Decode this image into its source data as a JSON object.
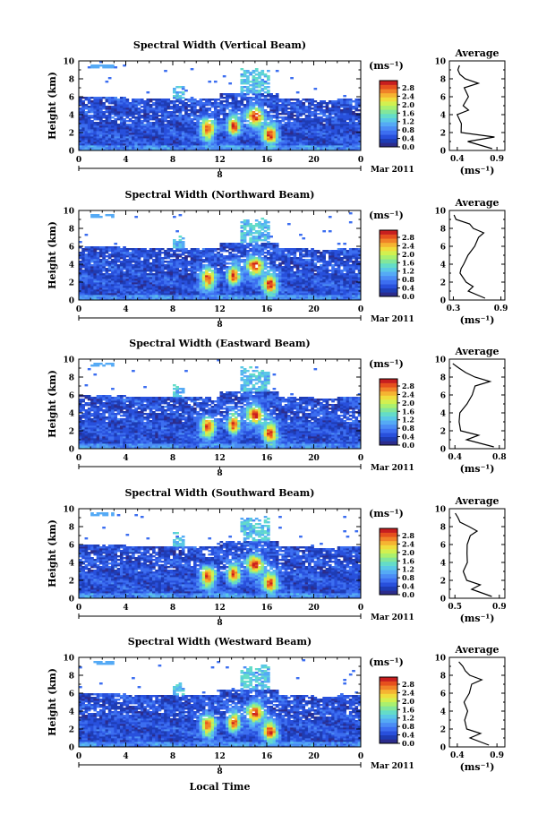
{
  "figure": {
    "xlabel": "Local Time",
    "date_label": "Mar 2011",
    "day_label": "8",
    "height_label": "Height (km)",
    "colorbar_unit": "(ms⁻¹)",
    "average_title": "Average",
    "average_xlabel": "(ms⁻¹)"
  },
  "colorbar": {
    "ticks": [
      "0.0",
      "0.4",
      "0.8",
      "1.2",
      "1.6",
      "2.0",
      "2.4",
      "2.8"
    ],
    "colors": [
      "#2c2c8c",
      "#1e3cb4",
      "#2850dc",
      "#3c6ef0",
      "#4b8cf5",
      "#55aaf5",
      "#5ac8e6",
      "#64dcc8",
      "#82e69b",
      "#aaf06e",
      "#d2f050",
      "#f0dc3c",
      "#f5b432",
      "#f08228",
      "#e6501e",
      "#c81e1e"
    ]
  },
  "chart_data": [
    {
      "type": "heatmap",
      "title": "Spectral Width (Vertical Beam)",
      "x_ticks": [
        "0",
        "4",
        "8",
        "12",
        "16",
        "20",
        "0"
      ],
      "y_ticks": [
        "0",
        "2",
        "4",
        "6",
        "8",
        "10"
      ],
      "xlim": [
        0,
        24
      ],
      "ylim": [
        0,
        10
      ],
      "profile": {
        "x_ticks": [
          "0.4",
          "0.9"
        ],
        "xlim": [
          0.3,
          1.0
        ],
        "height": [
          0.2,
          1.0,
          1.5,
          2.0,
          3.0,
          4.0,
          4.5,
          5.0,
          6.0,
          7.0,
          7.5,
          8.0,
          8.5,
          9.0,
          9.5
        ],
        "values": [
          0.85,
          0.55,
          0.85,
          0.45,
          0.45,
          0.4,
          0.55,
          0.48,
          0.55,
          0.5,
          0.65,
          0.5,
          0.45,
          0.4,
          0.42
        ]
      }
    },
    {
      "type": "heatmap",
      "title": "Spectral Width (Northward Beam)",
      "x_ticks": [
        "0",
        "4",
        "8",
        "12",
        "16",
        "20",
        "0"
      ],
      "y_ticks": [
        "0",
        "2",
        "4",
        "6",
        "8",
        "10"
      ],
      "xlim": [
        0,
        24
      ],
      "ylim": [
        0,
        10
      ],
      "profile": {
        "x_ticks": [
          "0.3",
          "0.9"
        ],
        "xlim": [
          0.25,
          0.95
        ],
        "height": [
          0.2,
          1.0,
          1.5,
          2.0,
          3.0,
          3.5,
          4.0,
          5.0,
          6.0,
          7.0,
          7.5,
          8.0,
          8.5,
          9.0,
          9.5
        ],
        "values": [
          0.7,
          0.5,
          0.55,
          0.45,
          0.4,
          0.38,
          0.45,
          0.5,
          0.55,
          0.6,
          0.7,
          0.55,
          0.5,
          0.35,
          0.32
        ]
      }
    },
    {
      "type": "heatmap",
      "title": "Spectral Width (Eastward Beam)",
      "x_ticks": [
        "0",
        "4",
        "8",
        "12",
        "16",
        "20",
        "0"
      ],
      "y_ticks": [
        "0",
        "2",
        "4",
        "6",
        "8",
        "10"
      ],
      "xlim": [
        0,
        24
      ],
      "ylim": [
        0,
        10
      ],
      "profile": {
        "x_ticks": [
          "0.4",
          "0.8"
        ],
        "xlim": [
          0.35,
          0.85
        ],
        "height": [
          0.2,
          1.0,
          1.5,
          2.0,
          3.0,
          4.0,
          5.0,
          6.0,
          7.0,
          7.5,
          8.0,
          8.5,
          9.0,
          9.5
        ],
        "values": [
          0.75,
          0.5,
          0.6,
          0.45,
          0.42,
          0.45,
          0.5,
          0.55,
          0.6,
          0.7,
          0.58,
          0.48,
          0.42,
          0.4
        ]
      }
    },
    {
      "type": "heatmap",
      "title": "Spectral Width (Southward Beam)",
      "x_ticks": [
        "0",
        "4",
        "8",
        "12",
        "16",
        "20",
        "0"
      ],
      "y_ticks": [
        "0",
        "2",
        "4",
        "6",
        "8",
        "10"
      ],
      "xlim": [
        0,
        24
      ],
      "ylim": [
        0,
        10
      ],
      "profile": {
        "x_ticks": [
          "0.5",
          "0.9"
        ],
        "xlim": [
          0.45,
          0.95
        ],
        "height": [
          0.2,
          1.0,
          1.5,
          2.0,
          3.0,
          4.0,
          5.0,
          6.0,
          7.0,
          7.5,
          8.0,
          8.5,
          9.0,
          9.5
        ],
        "values": [
          0.85,
          0.65,
          0.72,
          0.6,
          0.58,
          0.62,
          0.6,
          0.62,
          0.65,
          0.72,
          0.62,
          0.55,
          0.52,
          0.5
        ]
      }
    },
    {
      "type": "heatmap",
      "title": "Spectral Width (Westward Beam)",
      "x_ticks": [
        "0",
        "4",
        "8",
        "12",
        "16",
        "20",
        "0"
      ],
      "y_ticks": [
        "0",
        "2",
        "4",
        "6",
        "8",
        "10"
      ],
      "xlim": [
        0,
        24
      ],
      "ylim": [
        0,
        10
      ],
      "profile": {
        "x_ticks": [
          "0.4",
          "0.9"
        ],
        "xlim": [
          0.3,
          1.0
        ],
        "height": [
          0.2,
          1.0,
          1.5,
          2.0,
          3.0,
          4.0,
          5.0,
          6.0,
          7.0,
          7.5,
          8.0,
          8.5,
          9.0,
          9.5
        ],
        "values": [
          0.8,
          0.55,
          0.7,
          0.5,
          0.48,
          0.52,
          0.5,
          0.55,
          0.6,
          0.72,
          0.55,
          0.5,
          0.45,
          0.4
        ]
      }
    }
  ]
}
